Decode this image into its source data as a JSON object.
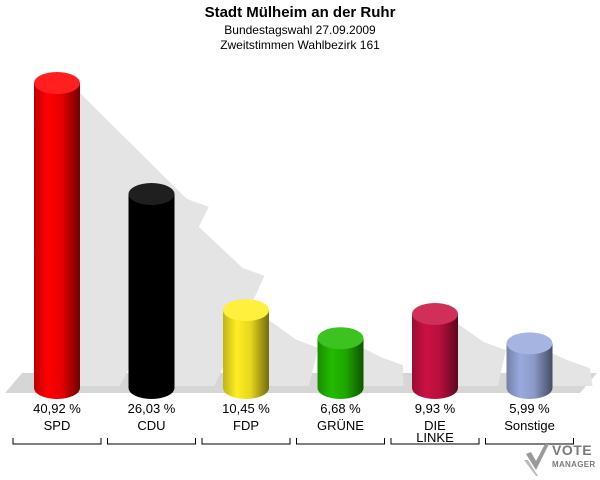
{
  "header": {
    "title": "Stadt Mülheim an der Ruhr",
    "subtitle1": "Bundestagswahl 27.09.2009",
    "subtitle2": "Zweitstimmen Wahlbezirk 161"
  },
  "chart_data": {
    "type": "bar",
    "title": "Stadt Mülheim an der Ruhr",
    "subtitle": "Bundestagswahl 27.09.2009 / Zweitstimmen Wahlbezirk 161",
    "categories": [
      "SPD",
      "CDU",
      "FDP",
      "GRÜNE",
      "DIE LINKE",
      "Sonstige"
    ],
    "values": [
      40.92,
      26.03,
      10.45,
      6.68,
      9.93,
      5.99
    ],
    "value_labels": [
      "40,92 %",
      "26,03 %",
      "10,45 %",
      "6,68 %",
      "9,93 %",
      "5,99 %"
    ],
    "colors": [
      "#ff0000",
      "#000000",
      "#ffee22",
      "#22bb00",
      "#cc1144",
      "#99aadd"
    ],
    "unit": "%",
    "grid": false,
    "legend": "none",
    "ylim": [
      0,
      42
    ]
  },
  "logo": {
    "line1": "VOTE",
    "line2": "MANAGER"
  }
}
